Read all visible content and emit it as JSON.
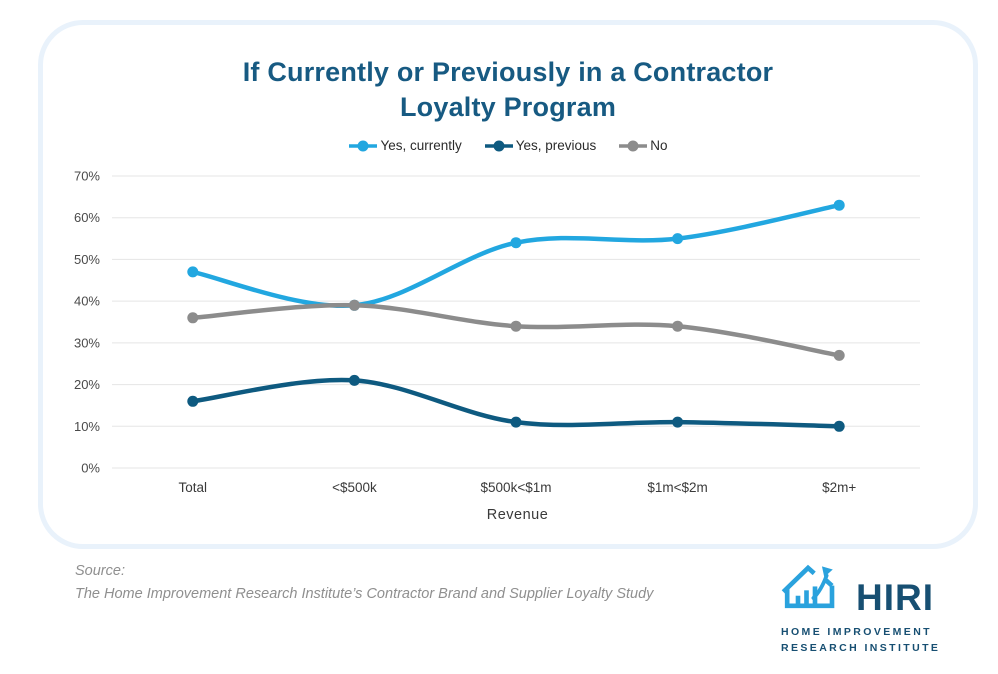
{
  "chart": {
    "title_line1": "If Currently or Previously in a Contractor",
    "title_line2": "Loyalty Program"
  },
  "chart_data": {
    "type": "line",
    "title": "If Currently or Previously in a Contractor Loyalty Program",
    "xlabel": "Revenue",
    "ylabel": "",
    "ylim": [
      0,
      70
    ],
    "ytick_step": 10,
    "ytick_suffix": "%",
    "grid": true,
    "legend_position": "top",
    "categories": [
      "Total",
      "<$500k",
      "$500k<$1m",
      "$1m<$2m",
      "$2m+"
    ],
    "series": [
      {
        "name": "Yes, currently",
        "color": "#22a7e0",
        "values": [
          47,
          39,
          54,
          55,
          63
        ]
      },
      {
        "name": "Yes, previous",
        "color": "#0e5a80",
        "values": [
          16,
          21,
          11,
          11,
          10
        ]
      },
      {
        "name": "No",
        "color": "#8c8c8c",
        "values": [
          36,
          39,
          34,
          34,
          27
        ]
      }
    ],
    "gridline_color": "#e5e5e5",
    "tick_label_color": "#4a4a4a"
  },
  "source": {
    "label": "Source:",
    "text": "The Home Improvement Research Institute’s Contractor Brand and Supplier Loyalty Study"
  },
  "logo": {
    "name": "HIRI",
    "subtitle_line1": "HOME IMPROVEMENT",
    "subtitle_line2": "RESEARCH INSTITUTE",
    "accent_color": "#2aa2dd",
    "navy_color": "#174f72"
  }
}
